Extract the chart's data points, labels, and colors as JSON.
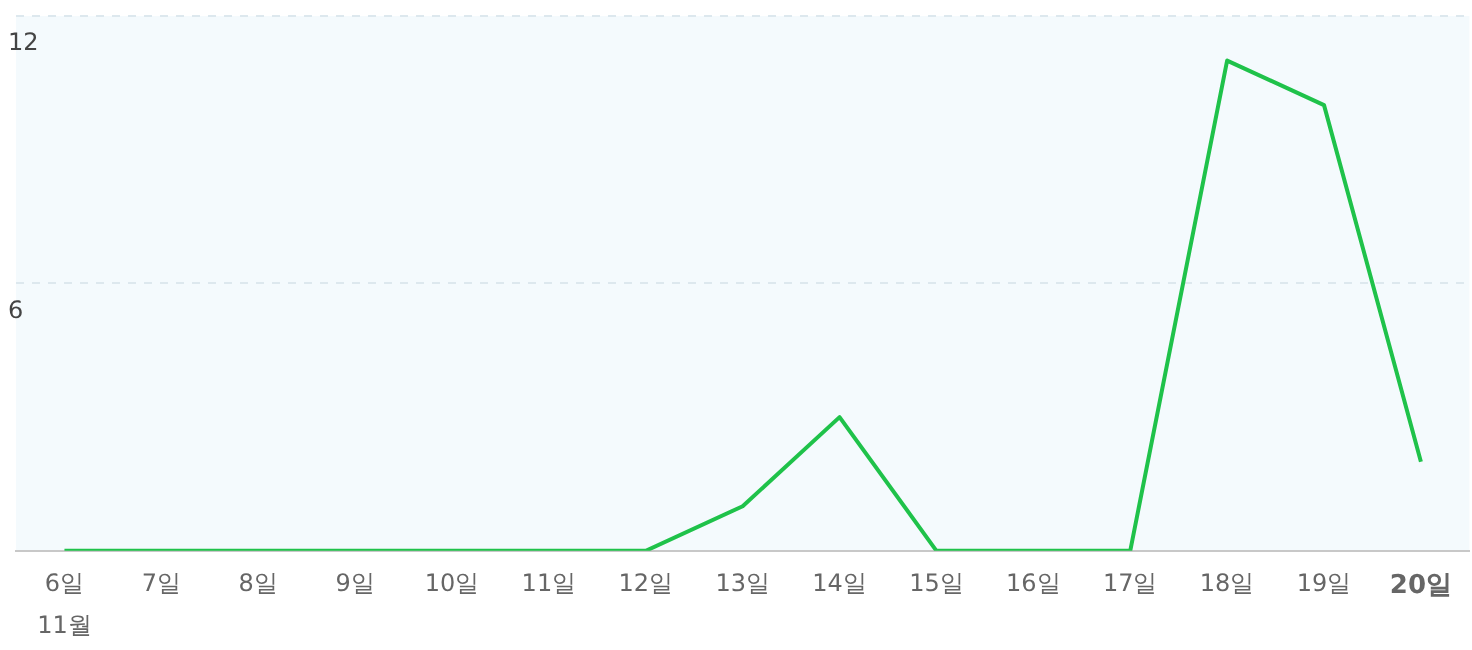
{
  "chart_data": {
    "type": "line",
    "categories": [
      "6일",
      "7일",
      "8일",
      "9일",
      "10일",
      "11일",
      "12일",
      "13일",
      "14일",
      "15일",
      "16일",
      "17일",
      "18일",
      "19일",
      "20일"
    ],
    "series": [
      {
        "color": "#1fc24a",
        "values": [
          0,
          0,
          0,
          0,
          0,
          0,
          0,
          1,
          3,
          0,
          0,
          0,
          11,
          10,
          2
        ]
      }
    ],
    "ylim": [
      0,
      12
    ],
    "yticks": [
      {
        "value": 0,
        "label": null
      },
      6,
      12
    ],
    "grid": "y",
    "legend": false,
    "marker": "none",
    "line_style": "solid",
    "annotations": [
      "11월"
    ]
  }
}
